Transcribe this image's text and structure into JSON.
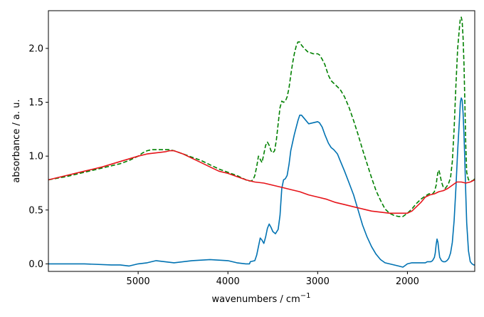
{
  "chart_data": {
    "type": "line",
    "title": "",
    "xlabel": "wavenumbers / cm",
    "xlabel_superscript": "−1",
    "ylabel": "absorbance / a. u.",
    "x_axis_reversed": true,
    "xlim": [
      6000,
      1250
    ],
    "ylim": [
      -0.07,
      2.35
    ],
    "xticks": [
      5000,
      4000,
      3000,
      2000
    ],
    "xtick_labels": [
      "5000",
      "4000",
      "3000",
      "2000"
    ],
    "yticks": [
      0.0,
      0.5,
      1.0,
      1.5,
      2.0
    ],
    "ytick_labels": [
      "0.0",
      "0.5",
      "1.0",
      "1.5",
      "2.0"
    ],
    "grid": false,
    "series": [
      {
        "color": "#0072b2",
        "style": "solid",
        "x": [
          6000,
          5600,
          5300,
          5200,
          5100,
          5000,
          4900,
          4800,
          4700,
          4600,
          4400,
          4200,
          4000,
          3900,
          3800,
          3760,
          3750,
          3700,
          3680,
          3660,
          3640,
          3620,
          3600,
          3580,
          3560,
          3540,
          3520,
          3500,
          3470,
          3440,
          3420,
          3400,
          3380,
          3360,
          3340,
          3320,
          3300,
          3260,
          3220,
          3200,
          3180,
          3150,
          3100,
          3050,
          3000,
          2980,
          2950,
          2920,
          2880,
          2850,
          2820,
          2780,
          2750,
          2700,
          2650,
          2600,
          2550,
          2500,
          2450,
          2400,
          2350,
          2300,
          2250,
          2200,
          2150,
          2100,
          2050,
          2000,
          1950,
          1900,
          1850,
          1800,
          1780,
          1760,
          1740,
          1720,
          1700,
          1690,
          1680,
          1670,
          1660,
          1650,
          1640,
          1620,
          1600,
          1580,
          1560,
          1540,
          1520,
          1500,
          1480,
          1460,
          1440,
          1420,
          1410,
          1400,
          1390,
          1380,
          1370,
          1360,
          1350,
          1340,
          1320,
          1300,
          1280,
          1260,
          1250
        ],
        "y": [
          0.0,
          0.0,
          -0.01,
          -0.01,
          -0.02,
          0.0,
          0.01,
          0.03,
          0.02,
          0.01,
          0.03,
          0.04,
          0.03,
          0.01,
          0.0,
          0.0,
          0.02,
          0.03,
          0.08,
          0.16,
          0.24,
          0.22,
          0.19,
          0.25,
          0.33,
          0.37,
          0.34,
          0.3,
          0.28,
          0.32,
          0.45,
          0.7,
          0.78,
          0.79,
          0.82,
          0.92,
          1.05,
          1.2,
          1.33,
          1.38,
          1.38,
          1.35,
          1.3,
          1.31,
          1.32,
          1.31,
          1.27,
          1.2,
          1.12,
          1.08,
          1.06,
          1.02,
          0.96,
          0.86,
          0.75,
          0.64,
          0.5,
          0.36,
          0.25,
          0.16,
          0.09,
          0.04,
          0.01,
          0.0,
          -0.01,
          -0.02,
          -0.03,
          0.0,
          0.01,
          0.01,
          0.01,
          0.01,
          0.02,
          0.02,
          0.02,
          0.03,
          0.06,
          0.1,
          0.18,
          0.23,
          0.2,
          0.12,
          0.06,
          0.03,
          0.02,
          0.02,
          0.03,
          0.05,
          0.1,
          0.2,
          0.4,
          0.7,
          1.05,
          1.35,
          1.5,
          1.54,
          1.52,
          1.4,
          1.2,
          0.95,
          0.65,
          0.38,
          0.12,
          0.02,
          0.0,
          -0.01,
          -0.01
        ]
      },
      {
        "color": "#008000",
        "style": "dashed",
        "x": [
          6000,
          5800,
          5600,
          5400,
          5300,
          5200,
          5100,
          5000,
          4950,
          4900,
          4850,
          4800,
          4750,
          4700,
          4650,
          4600,
          4500,
          4400,
          4300,
          4200,
          4100,
          4000,
          3900,
          3850,
          3800,
          3780,
          3760,
          3740,
          3720,
          3700,
          3680,
          3660,
          3650,
          3640,
          3620,
          3600,
          3580,
          3560,
          3540,
          3520,
          3500,
          3480,
          3460,
          3440,
          3420,
          3400,
          3380,
          3360,
          3340,
          3320,
          3300,
          3280,
          3260,
          3240,
          3220,
          3200,
          3180,
          3150,
          3100,
          3080,
          3050,
          3000,
          2980,
          2950,
          2920,
          2900,
          2880,
          2850,
          2800,
          2750,
          2700,
          2650,
          2600,
          2550,
          2500,
          2450,
          2400,
          2350,
          2300,
          2250,
          2200,
          2150,
          2100,
          2050,
          2000,
          1950,
          1900,
          1850,
          1800,
          1760,
          1720,
          1700,
          1680,
          1670,
          1660,
          1650,
          1640,
          1620,
          1600,
          1580,
          1560,
          1540,
          1520,
          1500,
          1480,
          1460,
          1440,
          1420,
          1410,
          1400,
          1390,
          1380,
          1370,
          1360,
          1350,
          1340,
          1320,
          1300,
          1280,
          1260,
          1250
        ],
        "y": [
          0.78,
          0.81,
          0.85,
          0.89,
          0.91,
          0.93,
          0.96,
          1.0,
          1.03,
          1.05,
          1.06,
          1.06,
          1.06,
          1.06,
          1.06,
          1.05,
          1.02,
          0.99,
          0.96,
          0.92,
          0.88,
          0.85,
          0.82,
          0.8,
          0.78,
          0.77,
          0.77,
          0.77,
          0.78,
          0.82,
          0.9,
          1.0,
          0.99,
          0.97,
          0.94,
          1.02,
          1.1,
          1.13,
          1.1,
          1.05,
          1.03,
          1.05,
          1.15,
          1.3,
          1.45,
          1.51,
          1.5,
          1.51,
          1.55,
          1.63,
          1.75,
          1.86,
          1.95,
          2.02,
          2.06,
          2.06,
          2.03,
          2.0,
          1.96,
          1.96,
          1.95,
          1.95,
          1.94,
          1.9,
          1.85,
          1.8,
          1.75,
          1.7,
          1.66,
          1.62,
          1.55,
          1.45,
          1.33,
          1.2,
          1.06,
          0.93,
          0.8,
          0.68,
          0.59,
          0.51,
          0.47,
          0.45,
          0.44,
          0.44,
          0.47,
          0.51,
          0.56,
          0.6,
          0.63,
          0.65,
          0.65,
          0.67,
          0.73,
          0.8,
          0.85,
          0.87,
          0.84,
          0.76,
          0.71,
          0.7,
          0.72,
          0.75,
          0.8,
          0.95,
          1.25,
          1.65,
          2.0,
          2.2,
          2.28,
          2.29,
          2.25,
          2.1,
          1.85,
          1.5,
          1.1,
          0.85,
          0.78,
          0.77,
          0.77,
          0.78,
          0.79
        ]
      },
      {
        "color": "#e6141a",
        "style": "solid",
        "x": [
          6000,
          5800,
          5600,
          5400,
          5200,
          5000,
          4900,
          4800,
          4700,
          4650,
          4600,
          4500,
          4400,
          4300,
          4200,
          4100,
          4000,
          3900,
          3800,
          3750,
          3700,
          3600,
          3500,
          3400,
          3300,
          3200,
          3100,
          3000,
          2900,
          2800,
          2700,
          2600,
          2500,
          2400,
          2300,
          2200,
          2100,
          2000,
          1950,
          1900,
          1850,
          1800,
          1750,
          1700,
          1650,
          1600,
          1550,
          1500,
          1450,
          1400,
          1350,
          1300,
          1250
        ],
        "y": [
          0.78,
          0.82,
          0.86,
          0.9,
          0.95,
          1.0,
          1.02,
          1.03,
          1.04,
          1.05,
          1.05,
          1.02,
          0.98,
          0.94,
          0.9,
          0.86,
          0.84,
          0.81,
          0.78,
          0.77,
          0.76,
          0.75,
          0.73,
          0.71,
          0.69,
          0.67,
          0.64,
          0.62,
          0.6,
          0.57,
          0.55,
          0.53,
          0.51,
          0.49,
          0.48,
          0.47,
          0.47,
          0.47,
          0.49,
          0.53,
          0.57,
          0.62,
          0.64,
          0.65,
          0.67,
          0.68,
          0.7,
          0.73,
          0.76,
          0.76,
          0.75,
          0.76,
          0.78
        ]
      }
    ]
  }
}
